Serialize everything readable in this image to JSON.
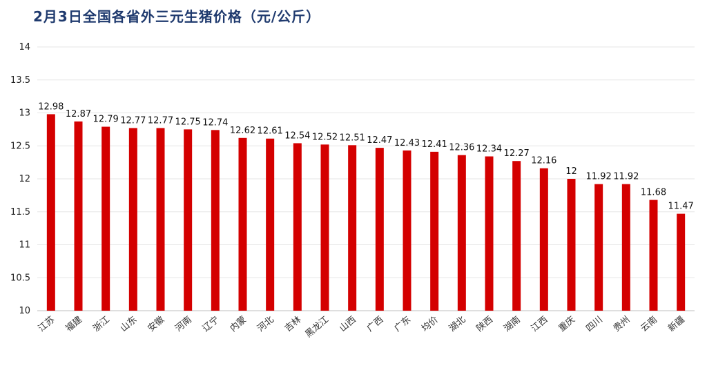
{
  "chart_data": {
    "type": "bar",
    "title": "2月3日全国各省外三元生猪价格（元/公斤）",
    "categories": [
      "江苏",
      "福建",
      "浙江",
      "山东",
      "安徽",
      "河南",
      "辽宁",
      "内蒙",
      "河北",
      "吉林",
      "黑龙江",
      "山西",
      "广西",
      "广东",
      "均价",
      "湖北",
      "陕西",
      "湖南",
      "江西",
      "重庆",
      "四川",
      "贵州",
      "云南",
      "新疆"
    ],
    "values": [
      12.98,
      12.87,
      12.79,
      12.77,
      12.77,
      12.75,
      12.74,
      12.62,
      12.61,
      12.54,
      12.52,
      12.51,
      12.47,
      12.43,
      12.41,
      12.36,
      12.34,
      12.27,
      12.16,
      12,
      11.92,
      11.92,
      11.68,
      11.47
    ],
    "value_labels": [
      "12.98",
      "12.87",
      "12.79",
      "12.77",
      "12.77",
      "12.75",
      "12.74",
      "12.62",
      "12.61",
      "12.54",
      "12.52",
      "12.51",
      "12.47",
      "12.43",
      "12.41",
      "12.36",
      "12.34",
      "12.27",
      "12.16",
      "12",
      "11.92",
      "11.92",
      "11.68",
      "11.47"
    ],
    "ylim": [
      10,
      14
    ],
    "yticks": [
      "10",
      "10.5",
      "11",
      "11.5",
      "12",
      "12.5",
      "13",
      "13.5",
      "14"
    ],
    "grid": true,
    "legend": "none",
    "bar_color": "#d40000"
  }
}
